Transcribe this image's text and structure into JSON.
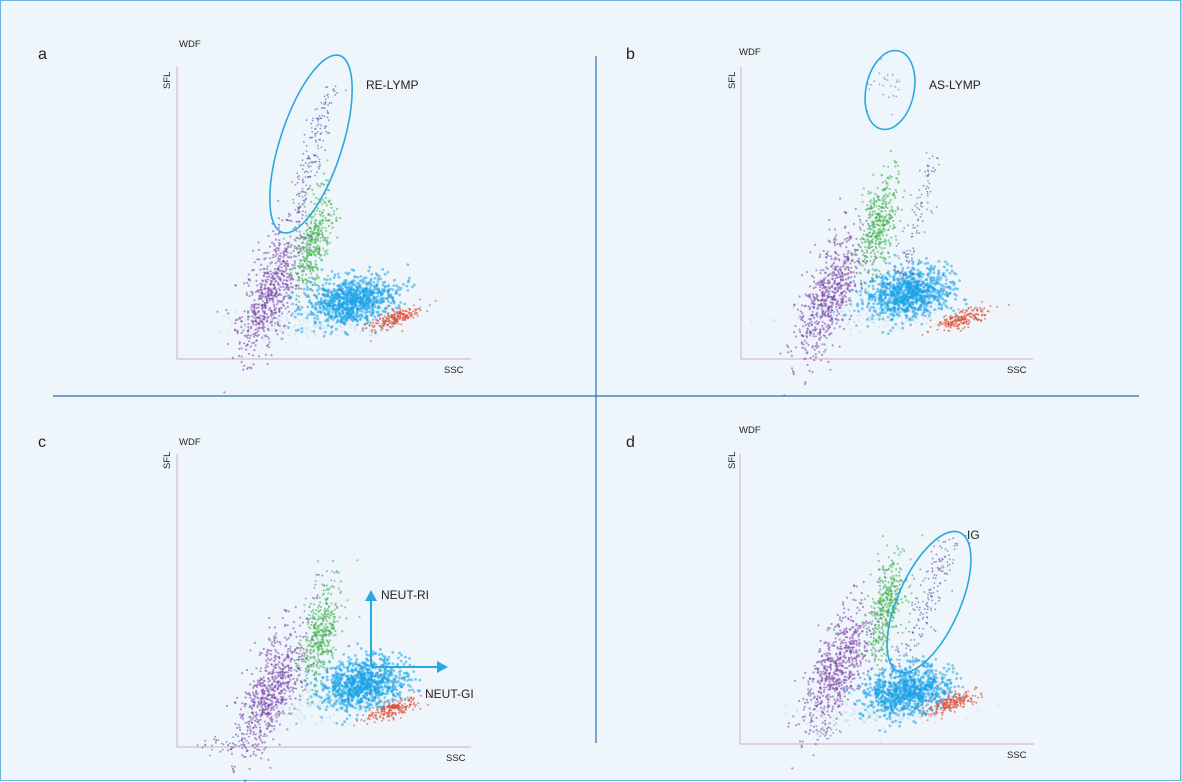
{
  "colors": {
    "background": "#eef6fb",
    "frame": "#6fb2dc",
    "divider": "#2b6fb3",
    "axis": "#d9b8cc",
    "gate": "#29a9e0",
    "lymph": "#7b3fa6",
    "mono": "#3cae49",
    "neut": "#1aa3e8",
    "eos": "#e0452b",
    "debris": "#b8d8ec",
    "scatter_points": "#5a4fa0"
  },
  "panels": [
    {
      "letter": "a",
      "title": "WDF",
      "y_label": "SFL",
      "x_label": "SSC",
      "annotation": "RE-LYMP"
    },
    {
      "letter": "b",
      "title": "WDF",
      "y_label": "SFL",
      "x_label": "SSC",
      "annotation": "AS-LYMP"
    },
    {
      "letter": "c",
      "title": "WDF",
      "y_label": "SFL",
      "x_label": "SSC",
      "annotation_y": "NEUT-RI",
      "annotation_x": "NEUT-GI"
    },
    {
      "letter": "d",
      "title": "WDF",
      "y_label": "SFL",
      "x_label": "SSC",
      "annotation": "IG"
    }
  ]
}
